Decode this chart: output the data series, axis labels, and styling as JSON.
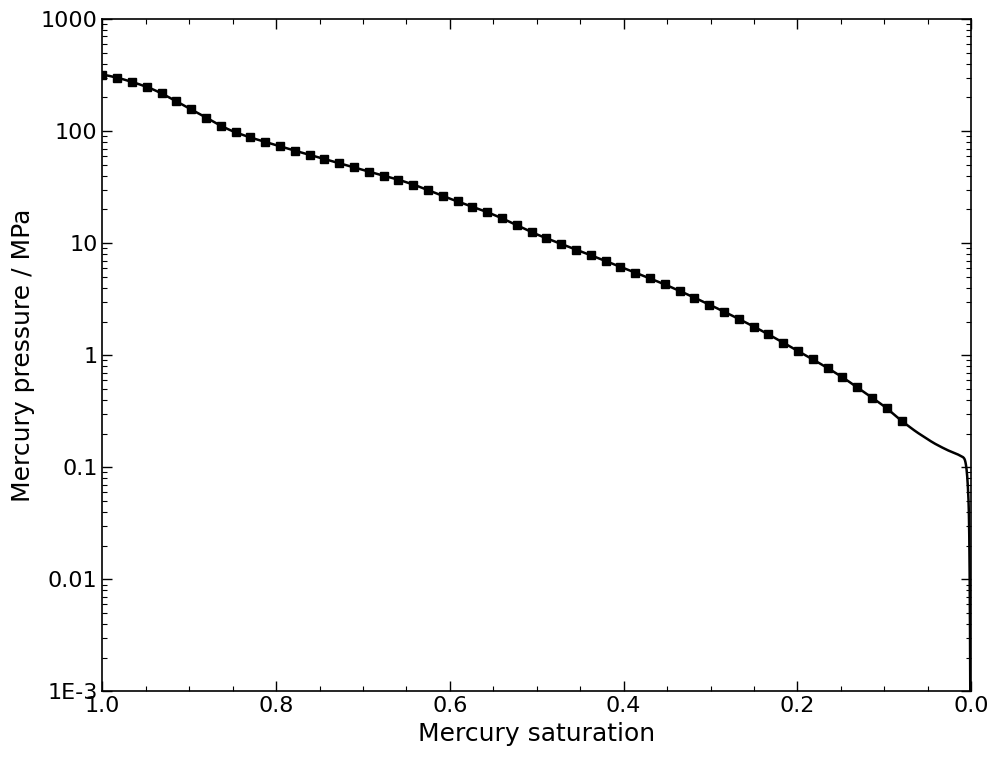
{
  "xlabel": "Mercury saturation",
  "ylabel": "Mercury pressure / MPa",
  "xlim_left": 1.0,
  "xlim_right": 0.0,
  "ylim_log": [
    0.001,
    1000
  ],
  "x_ticks": [
    1.0,
    0.8,
    0.6,
    0.4,
    0.2,
    0.0
  ],
  "y_ticks": [
    0.001,
    0.01,
    0.1,
    1,
    10,
    100,
    1000
  ],
  "y_tick_labels": [
    "1E-3",
    "0.01",
    "0.1",
    "1",
    "10",
    "100",
    "1000"
  ],
  "marker": "s",
  "marker_color": "black",
  "line_color": "black",
  "background_color": "#ffffff",
  "xlabel_fontsize": 18,
  "ylabel_fontsize": 18,
  "tick_fontsize": 16,
  "s_ctrl": [
    1.0,
    0.95,
    0.9,
    0.85,
    0.8,
    0.75,
    0.7,
    0.65,
    0.6,
    0.55,
    0.5,
    0.45,
    0.4,
    0.35,
    0.3,
    0.25,
    0.2,
    0.15,
    0.12,
    0.1,
    0.08,
    0.06,
    0.04,
    0.025,
    0.015,
    0.008,
    0.003,
    0.001
  ],
  "p_ctrl": [
    320,
    250,
    160,
    100,
    75,
    58,
    45,
    35,
    25,
    18,
    12,
    8.5,
    6.0,
    4.2,
    2.8,
    1.8,
    1.1,
    0.65,
    0.45,
    0.35,
    0.26,
    0.2,
    0.16,
    0.14,
    0.13,
    0.12,
    0.05,
    0.001
  ]
}
